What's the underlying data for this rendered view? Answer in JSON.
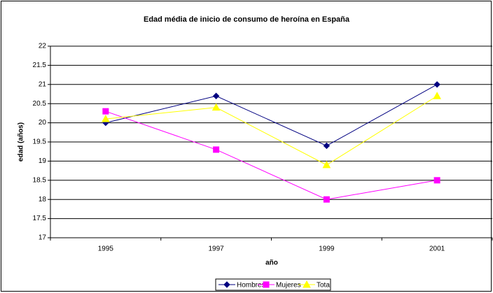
{
  "chart_data": {
    "type": "line",
    "title": "Edad média de inicio de consumo de heroína en España",
    "x_label": "año",
    "y_label": "edad (años)",
    "categories": [
      "1995",
      "1997",
      "1999",
      "2001"
    ],
    "series": [
      {
        "name": "Hombres",
        "color": "#000080",
        "marker": "diamond",
        "values": [
          20,
          20.7,
          19.4,
          21
        ]
      },
      {
        "name": "Mujeres",
        "color": "#ff00ff",
        "marker": "square",
        "values": [
          20.3,
          19.3,
          18,
          18.5
        ]
      },
      {
        "name": "Total",
        "color": "#ffff00",
        "marker": "triangle",
        "values": [
          20.1,
          20.4,
          18.9,
          20.7
        ]
      }
    ],
    "ylim": [
      17,
      22
    ],
    "yticks": [
      17,
      17.5,
      18,
      18.5,
      19,
      19.5,
      20,
      20.5,
      21,
      21.5,
      22
    ],
    "grid": true,
    "legend": "bottom"
  }
}
